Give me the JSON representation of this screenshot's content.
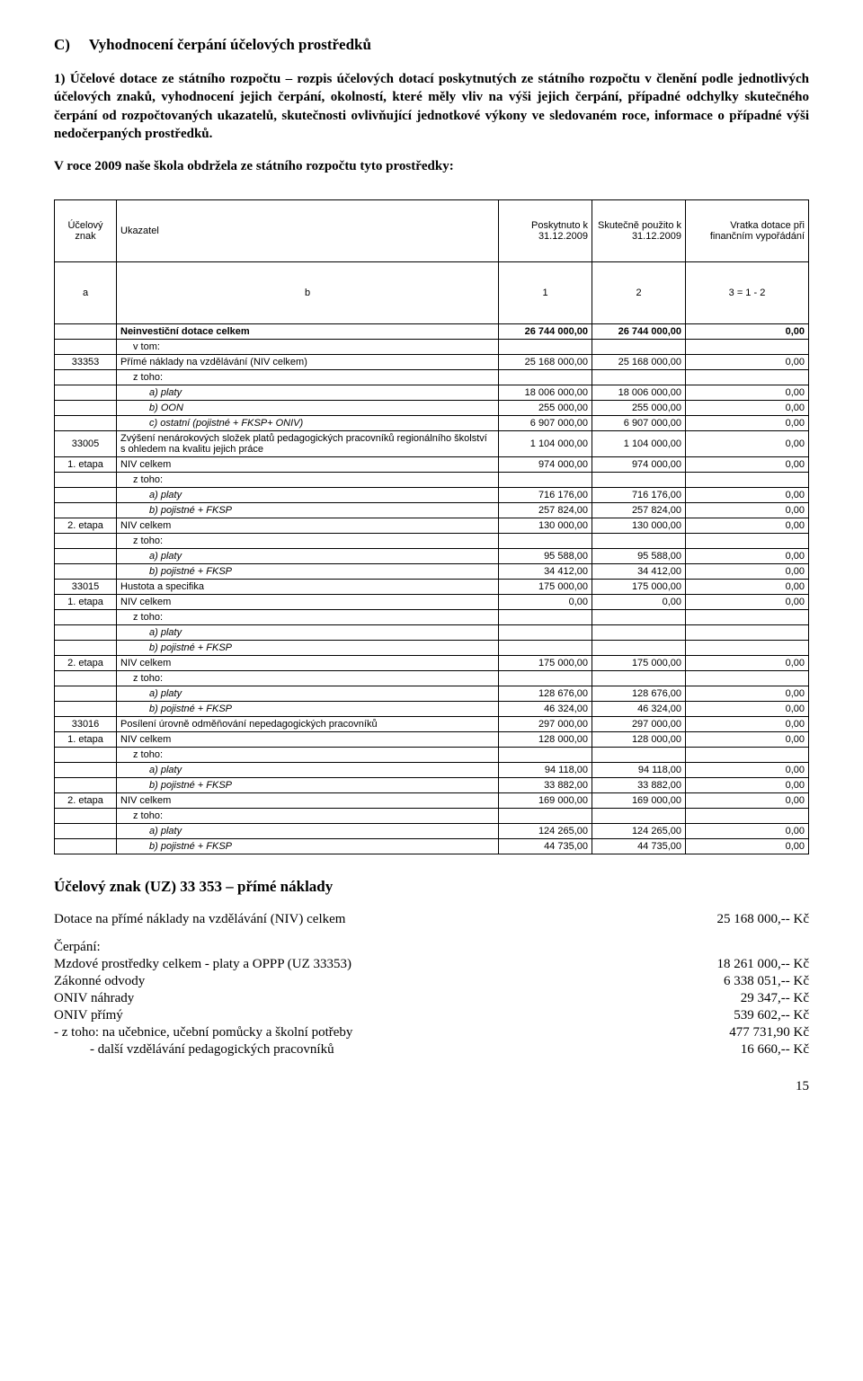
{
  "section": {
    "letter": "C)",
    "title": "Vyhodnocení čerpání účelových prostředků"
  },
  "para1": "1) Účelové dotace ze státního rozpočtu – rozpis účelových dotací poskytnutých ze státního rozpočtu v členění podle jednotlivých účelových znaků, vyhodnocení jejich čerpání, okolností, které měly vliv na výši jejich čerpání, případné odchylky skutečného čerpání od rozpočtovaných ukazatelů, skutečnosti ovlivňující jednotkové výkony ve sledovaném roce, informace o případné výši nedočerpaných prostředků.",
  "para2": "V roce 2009 naše škola obdržela ze státního rozpočtu tyto prostředky:",
  "table": {
    "headers": {
      "znak": "Účelový znak",
      "uk": "Ukazatel",
      "poskytnuto": "Poskytnuto k 31.12.2009",
      "skutecne": "Skutečně použito k 31.12.2009",
      "vratka": "Vratka dotace při finančním vypořádání"
    },
    "subheader": {
      "a": "a",
      "b": "b",
      "c1": "1",
      "c2": "2",
      "c3": "3 = 1 - 2"
    },
    "rows": [
      {
        "bold": true,
        "znak": "",
        "uk": "Neinvestiční dotace celkem",
        "v1": "26 744 000,00",
        "v2": "26 744 000,00",
        "v3": "0,00"
      },
      {
        "znak": "",
        "uk": "v tom:",
        "ind": 1,
        "v1": "",
        "v2": "",
        "v3": ""
      },
      {
        "znak": "33353",
        "uk": "Přímé náklady na vzdělávání (NIV celkem)",
        "v1": "25 168 000,00",
        "v2": "25 168 000,00",
        "v3": "0,00"
      },
      {
        "znak": "",
        "uk": "z toho:",
        "ind": 1,
        "v1": "",
        "v2": "",
        "v3": ""
      },
      {
        "znak": "",
        "uk": "a) platy",
        "ind": 2,
        "v1": "18 006 000,00",
        "v2": "18 006 000,00",
        "v3": "0,00"
      },
      {
        "znak": "",
        "uk": "b) OON",
        "ind": 2,
        "v1": "255 000,00",
        "v2": "255 000,00",
        "v3": "0,00"
      },
      {
        "znak": "",
        "uk": "c) ostatní (pojistné + FKSP+ ONIV)",
        "ind": 2,
        "v1": "6 907 000,00",
        "v2": "6 907 000,00",
        "v3": "0,00"
      },
      {
        "znak": "33005",
        "uk": "Zvýšení nenárokových složek platů pedagogických pracovníků regionálního školství s ohledem na kvalitu jejich práce",
        "v1": "1 104 000,00",
        "v2": "1 104 000,00",
        "v3": "0,00"
      },
      {
        "znak": "1. etapa",
        "uk": "NIV celkem",
        "v1": "974 000,00",
        "v2": "974 000,00",
        "v3": "0,00"
      },
      {
        "znak": "",
        "uk": "z toho:",
        "ind": 1,
        "v1": "",
        "v2": "",
        "v3": ""
      },
      {
        "znak": "",
        "uk": "a) platy",
        "ind": 2,
        "v1": "716 176,00",
        "v2": "716 176,00",
        "v3": "0,00"
      },
      {
        "znak": "",
        "uk": "b) pojistné + FKSP",
        "ind": 2,
        "v1": "257 824,00",
        "v2": "257 824,00",
        "v3": "0,00"
      },
      {
        "znak": "2. etapa",
        "uk": "NIV celkem",
        "v1": "130 000,00",
        "v2": "130 000,00",
        "v3": "0,00"
      },
      {
        "znak": "",
        "uk": "z toho:",
        "ind": 1,
        "v1": "",
        "v2": "",
        "v3": ""
      },
      {
        "znak": "",
        "uk": "a) platy",
        "ind": 2,
        "v1": "95 588,00",
        "v2": "95 588,00",
        "v3": "0,00"
      },
      {
        "znak": "",
        "uk": "b) pojistné + FKSP",
        "ind": 2,
        "v1": "34 412,00",
        "v2": "34 412,00",
        "v3": "0,00"
      },
      {
        "znak": "33015",
        "uk": "Hustota a specifika",
        "v1": "175 000,00",
        "v2": "175 000,00",
        "v3": "0,00"
      },
      {
        "znak": "1. etapa",
        "uk": "NIV celkem",
        "v1": "0,00",
        "v2": "0,00",
        "v3": "0,00"
      },
      {
        "znak": "",
        "uk": "z toho:",
        "ind": 1,
        "v1": "",
        "v2": "",
        "v3": ""
      },
      {
        "znak": "",
        "uk": "a) platy",
        "ind": 2,
        "v1": "",
        "v2": "",
        "v3": ""
      },
      {
        "znak": "",
        "uk": "b) pojistné + FKSP",
        "ind": 2,
        "v1": "",
        "v2": "",
        "v3": ""
      },
      {
        "znak": "2. etapa",
        "uk": "NIV celkem",
        "v1": "175 000,00",
        "v2": "175 000,00",
        "v3": "0,00"
      },
      {
        "znak": "",
        "uk": "z toho:",
        "ind": 1,
        "v1": "",
        "v2": "",
        "v3": ""
      },
      {
        "znak": "",
        "uk": "a) platy",
        "ind": 2,
        "v1": "128 676,00",
        "v2": "128 676,00",
        "v3": "0,00"
      },
      {
        "znak": "",
        "uk": "b) pojistné + FKSP",
        "ind": 2,
        "v1": "46 324,00",
        "v2": "46 324,00",
        "v3": "0,00"
      },
      {
        "znak": "33016",
        "uk": "Posílení úrovně odměňování nepedagogických pracovníků",
        "v1": "297 000,00",
        "v2": "297 000,00",
        "v3": "0,00"
      },
      {
        "znak": "1. etapa",
        "uk": "NIV celkem",
        "v1": "128 000,00",
        "v2": "128 000,00",
        "v3": "0,00"
      },
      {
        "znak": "",
        "uk": "z toho:",
        "ind": 1,
        "v1": "",
        "v2": "",
        "v3": ""
      },
      {
        "znak": "",
        "uk": "a) platy",
        "ind": 2,
        "v1": "94 118,00",
        "v2": "94 118,00",
        "v3": "0,00"
      },
      {
        "znak": "",
        "uk": "b) pojistné + FKSP",
        "ind": 2,
        "v1": "33 882,00",
        "v2": "33 882,00",
        "v3": "0,00"
      },
      {
        "znak": "2. etapa",
        "uk": "NIV celkem",
        "v1": "169 000,00",
        "v2": "169 000,00",
        "v3": "0,00"
      },
      {
        "znak": "",
        "uk": "z toho:",
        "ind": 1,
        "v1": "",
        "v2": "",
        "v3": ""
      },
      {
        "znak": "",
        "uk": "a) platy",
        "ind": 2,
        "v1": "124 265,00",
        "v2": "124 265,00",
        "v3": "0,00"
      },
      {
        "znak": "",
        "uk": "b) pojistné + FKSP",
        "ind": 2,
        "v1": "44 735,00",
        "v2": "44 735,00",
        "v3": "0,00"
      }
    ]
  },
  "uz": {
    "title": "Účelový znak (UZ) 33 353 – přímé náklady",
    "lines": [
      {
        "label": "Dotace na přímé náklady na vzdělávání (NIV) celkem",
        "value": "25 168 000,-- Kč",
        "block_after": true
      },
      {
        "label": "Čerpání:",
        "value": ""
      },
      {
        "label": "Mzdové prostředky celkem - platy a OPPP (UZ 33353)",
        "value": "18 261 000,-- Kč"
      },
      {
        "label": "Zákonné odvody",
        "value": "6 338 051,-- Kč"
      },
      {
        "label": "ONIV náhrady",
        "value": "29 347,-- Kč"
      },
      {
        "label": "ONIV přímý",
        "value": "539 602,-- Kč"
      },
      {
        "label": "- z toho: na učebnice, učební pomůcky a školní potřeby",
        "value": "477 731,90 Kč"
      },
      {
        "label": "- další vzdělávání pedagogických pracovníků",
        "value": "16 660,-- Kč",
        "indent": true
      }
    ]
  },
  "page": "15"
}
